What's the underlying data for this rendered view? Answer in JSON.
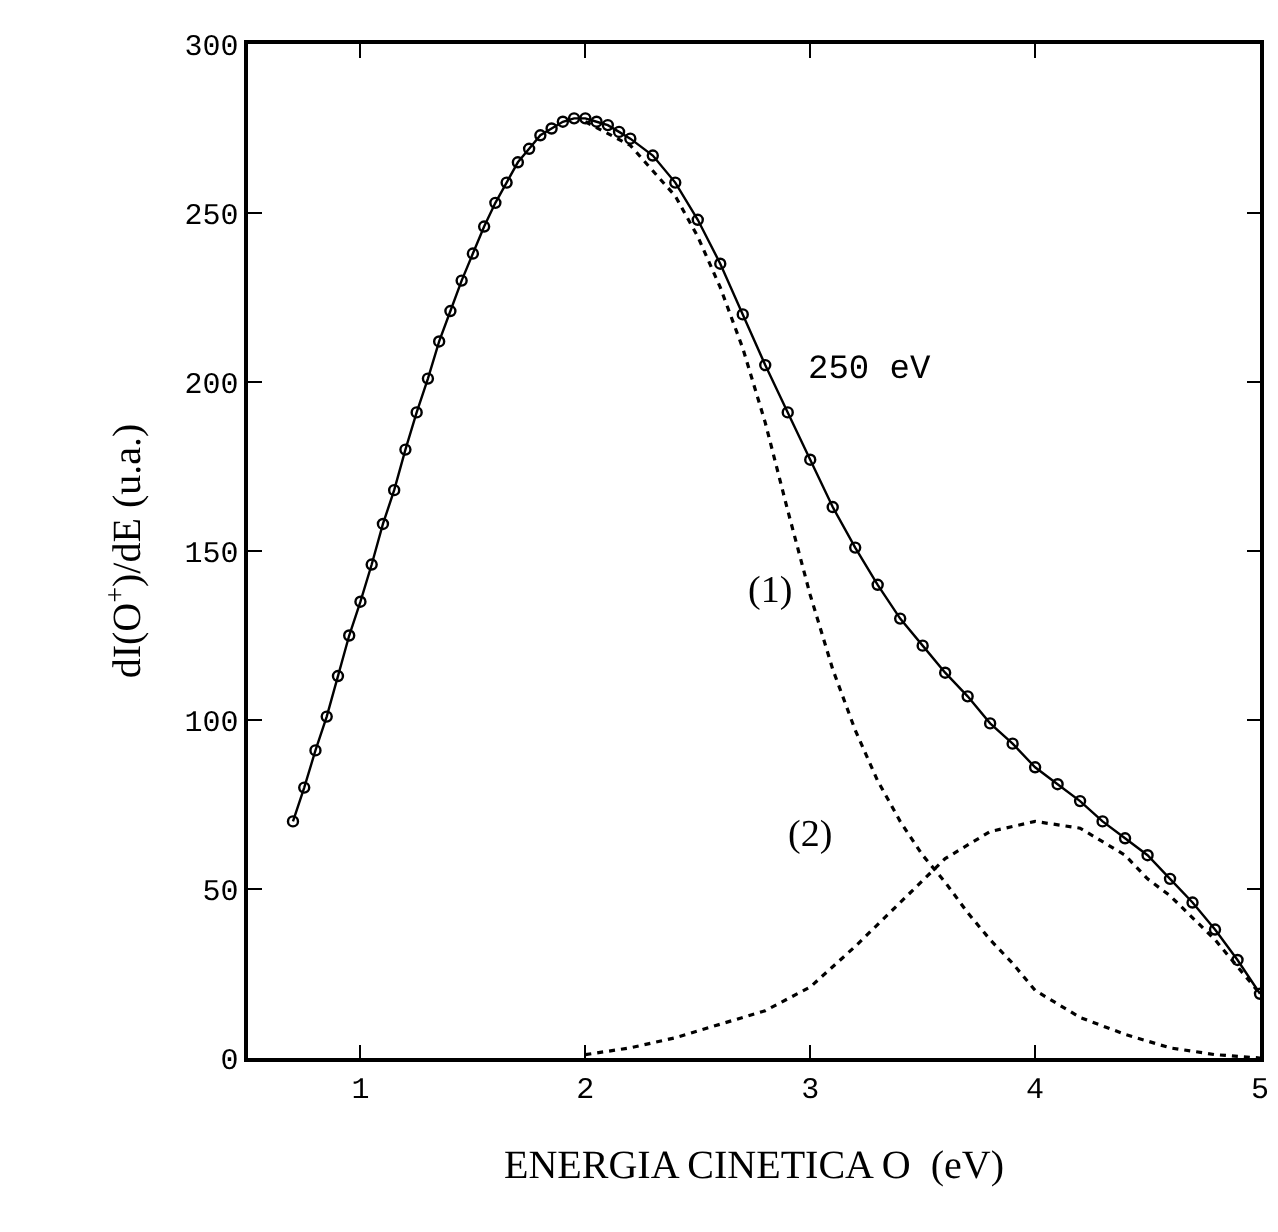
{
  "chart_data": {
    "type": "line",
    "xlabel": "ENERGIA CINETICA O  (eV)",
    "ylabel": "dI(O$^{+}$)/dE (u.a.)",
    "xlim": [
      0.5,
      5
    ],
    "xticks": [
      1,
      2,
      3,
      4,
      5
    ],
    "ylim": [
      0,
      300
    ],
    "yticks": [
      0,
      50,
      100,
      150,
      200,
      250,
      300
    ],
    "grid": false,
    "series": [
      {
        "color": "#000000",
        "marker": "circle",
        "line_style": "solid",
        "x": [
          0.7,
          0.75,
          0.8,
          0.85,
          0.9,
          0.95,
          1.0,
          1.05,
          1.1,
          1.15,
          1.2,
          1.25,
          1.3,
          1.35,
          1.4,
          1.45,
          1.5,
          1.55,
          1.6,
          1.65,
          1.7,
          1.75,
          1.8,
          1.85,
          1.9,
          1.95,
          2.0,
          2.05,
          2.1,
          2.15,
          2.2,
          2.3,
          2.4,
          2.5,
          2.6,
          2.7,
          2.8,
          2.9,
          3.0,
          3.1,
          3.2,
          3.3,
          3.4,
          3.5,
          3.6,
          3.7,
          3.8,
          3.9,
          4.0,
          4.1,
          4.2,
          4.3,
          4.4,
          4.5,
          4.6,
          4.7,
          4.8,
          4.9,
          5.0
        ],
        "values": [
          70,
          80,
          91,
          101,
          113,
          125,
          135,
          146,
          158,
          168,
          180,
          191,
          201,
          212,
          221,
          230,
          238,
          246,
          253,
          259,
          265,
          269,
          273,
          275,
          277,
          278,
          278,
          277,
          276,
          274,
          272,
          267,
          259,
          248,
          235,
          220,
          205,
          191,
          177,
          163,
          151,
          140,
          130,
          122,
          114,
          107,
          99,
          93,
          86,
          81,
          76,
          70,
          65,
          60,
          53,
          46,
          38,
          29,
          19
        ]
      },
      {
        "color": "#000000",
        "marker": "none",
        "line_style": "dotted",
        "x": [
          2.0,
          2.2,
          2.4,
          2.5,
          2.6,
          2.7,
          2.8,
          2.9,
          3.0,
          3.1,
          3.2,
          3.3,
          3.4,
          3.5,
          3.6,
          3.7,
          3.8,
          3.9,
          4.0,
          4.2,
          4.4,
          4.6,
          4.8,
          5.0
        ],
        "values": [
          277,
          270,
          255,
          243,
          228,
          210,
          188,
          162,
          137,
          115,
          97,
          82,
          70,
          60,
          52,
          43,
          35,
          28,
          20,
          12,
          7,
          3,
          1,
          0
        ]
      },
      {
        "color": "#000000",
        "marker": "none",
        "line_style": "dotted",
        "x": [
          2.0,
          2.2,
          2.4,
          2.6,
          2.8,
          3.0,
          3.2,
          3.4,
          3.6,
          3.8,
          4.0,
          4.2,
          4.4,
          4.5,
          4.6,
          4.8,
          5.0
        ],
        "values": [
          1,
          3,
          6,
          10,
          14,
          21,
          33,
          46,
          59,
          67,
          70,
          68,
          60,
          53,
          48,
          35,
          19
        ]
      }
    ],
    "annotations": [
      "250 eV",
      "(1)",
      "(2)"
    ]
  }
}
